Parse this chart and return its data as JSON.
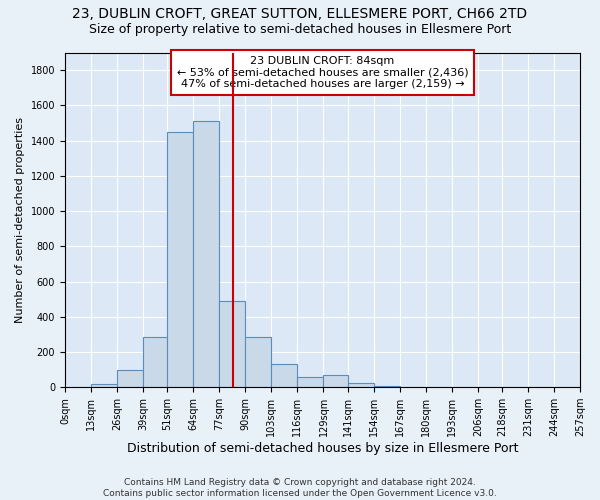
{
  "title": "23, DUBLIN CROFT, GREAT SUTTON, ELLESMERE PORT, CH66 2TD",
  "subtitle": "Size of property relative to semi-detached houses in Ellesmere Port",
  "xlabel": "Distribution of semi-detached houses by size in Ellesmere Port",
  "ylabel": "Number of semi-detached properties",
  "bin_edges": [
    0,
    13,
    26,
    39,
    51,
    64,
    77,
    90,
    103,
    116,
    129,
    141,
    154,
    167,
    180,
    193,
    206,
    218,
    231,
    244,
    257
  ],
  "bin_labels": [
    "0sqm",
    "13sqm",
    "26sqm",
    "39sqm",
    "51sqm",
    "64sqm",
    "77sqm",
    "90sqm",
    "103sqm",
    "116sqm",
    "129sqm",
    "141sqm",
    "154sqm",
    "167sqm",
    "180sqm",
    "193sqm",
    "206sqm",
    "218sqm",
    "231sqm",
    "244sqm",
    "257sqm"
  ],
  "bar_heights": [
    2,
    20,
    100,
    285,
    1450,
    1510,
    490,
    285,
    130,
    60,
    70,
    25,
    5,
    2,
    0,
    0,
    0,
    0,
    0,
    2
  ],
  "bar_color": "#c9d9e8",
  "bar_edge_color": "#5b8db8",
  "property_size": 84,
  "vline_color": "#cc0000",
  "annotation_line1": "23 DUBLIN CROFT: 84sqm",
  "annotation_line2": "← 53% of semi-detached houses are smaller (2,436)",
  "annotation_line3": "47% of semi-detached houses are larger (2,159) →",
  "annotation_box_edgecolor": "#cc0000",
  "ylim": [
    0,
    1900
  ],
  "yticks": [
    0,
    200,
    400,
    600,
    800,
    1000,
    1200,
    1400,
    1600,
    1800
  ],
  "footer": "Contains HM Land Registry data © Crown copyright and database right 2024.\nContains public sector information licensed under the Open Government Licence v3.0.",
  "bg_color": "#e8f0f8",
  "plot_bg_color": "#dce8f5",
  "grid_color": "#ffffff",
  "title_fontsize": 10,
  "subtitle_fontsize": 9,
  "ylabel_fontsize": 8,
  "xlabel_fontsize": 9,
  "tick_fontsize": 7,
  "footer_fontsize": 6.5,
  "annotation_fontsize": 8
}
